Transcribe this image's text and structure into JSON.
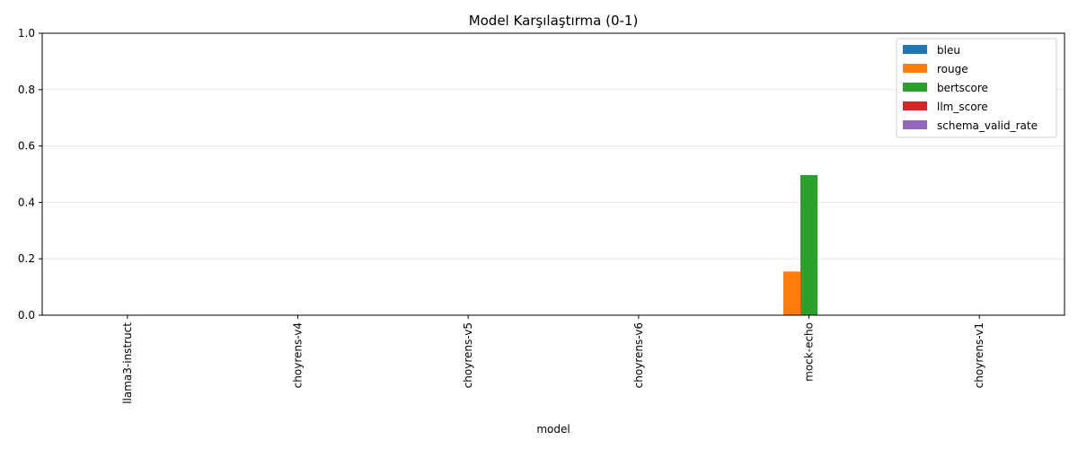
{
  "chart_data": {
    "type": "bar",
    "title": "Model Karşılaştırma (0-1)",
    "xlabel": "model",
    "ylabel": "",
    "ylim": [
      0,
      1
    ],
    "yticks": [
      "0.0",
      "0.2",
      "0.4",
      "0.6",
      "0.8",
      "1.0"
    ],
    "grid": "y",
    "legend_position": "top-right",
    "categories": [
      "llama3-instruct",
      "choyrens-v4",
      "choyrens-v5",
      "choyrens-v6",
      "mock-echo",
      "choyrens-v1"
    ],
    "series": [
      {
        "name": "bleu",
        "color": "#1f77b4",
        "values": [
          0,
          0,
          0,
          0,
          0,
          0
        ]
      },
      {
        "name": "rouge",
        "color": "#ff7f0e",
        "values": [
          0,
          0,
          0,
          0,
          0.155,
          0
        ]
      },
      {
        "name": "bertscore",
        "color": "#2ca02c",
        "values": [
          0,
          0,
          0,
          0,
          0.497,
          0
        ]
      },
      {
        "name": "llm_score",
        "color": "#d62728",
        "values": [
          0,
          0,
          0,
          0,
          0,
          0
        ]
      },
      {
        "name": "schema_valid_rate",
        "color": "#9467bd",
        "values": [
          0,
          0,
          0,
          0,
          0,
          0
        ]
      }
    ]
  }
}
